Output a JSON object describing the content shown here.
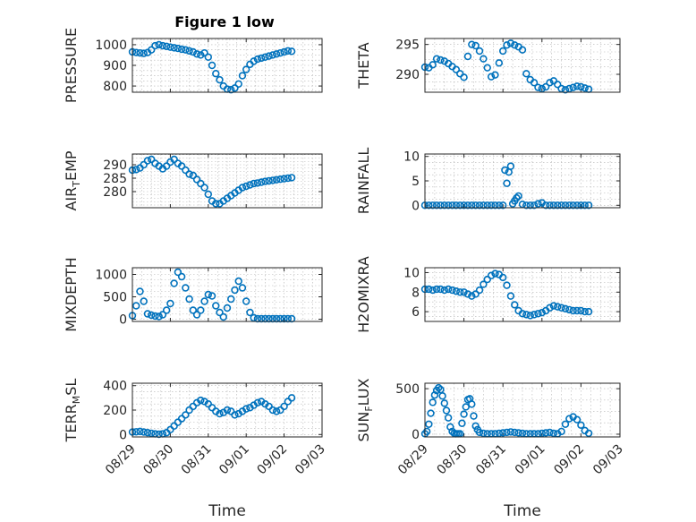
{
  "figure": {
    "title": "Figure 1 low",
    "marker_color": "#0072BD"
  },
  "chart_data": [
    {
      "type": "scatter",
      "ylabel": "PRESSURE",
      "title": "Figure 1 low",
      "xlabel": "",
      "xlim": [
        0,
        5
      ],
      "ylim": [
        770,
        1030
      ],
      "yticks": [
        800,
        900,
        1000
      ],
      "yticklabels": [
        "800",
        "900",
        "1000"
      ],
      "xticks": [
        0,
        1,
        2,
        3,
        4,
        5
      ],
      "xticklabels": [
        "",
        "",
        "",
        "",
        "",
        ""
      ],
      "x": [
        0.0,
        0.1,
        0.2,
        0.3,
        0.4,
        0.5,
        0.6,
        0.7,
        0.8,
        0.9,
        1.0,
        1.1,
        1.2,
        1.3,
        1.4,
        1.5,
        1.6,
        1.7,
        1.8,
        1.9,
        2.0,
        2.1,
        2.2,
        2.3,
        2.4,
        2.5,
        2.6,
        2.7,
        2.8,
        2.9,
        3.0,
        3.1,
        3.2,
        3.3,
        3.4,
        3.5,
        3.6,
        3.7,
        3.8,
        3.9,
        4.0,
        4.1,
        4.2
      ],
      "y": [
        965,
        962,
        960,
        958,
        962,
        975,
        995,
        1000,
        995,
        992,
        988,
        985,
        982,
        978,
        975,
        970,
        965,
        955,
        950,
        960,
        940,
        900,
        860,
        830,
        800,
        785,
        782,
        790,
        810,
        850,
        880,
        905,
        920,
        930,
        935,
        940,
        945,
        950,
        955,
        960,
        965,
        970,
        968
      ]
    },
    {
      "type": "scatter",
      "ylabel": "THETA",
      "xlabel": "",
      "xlim": [
        0,
        5
      ],
      "ylim": [
        287,
        296
      ],
      "yticks": [
        290,
        295
      ],
      "yticklabels": [
        "290",
        "295"
      ],
      "xticks": [
        0,
        1,
        2,
        3,
        4,
        5
      ],
      "xticklabels": [
        "",
        "",
        "",
        "",
        "",
        ""
      ],
      "x": [
        0.0,
        0.1,
        0.2,
        0.3,
        0.4,
        0.5,
        0.6,
        0.7,
        0.8,
        0.9,
        1.0,
        1.1,
        1.2,
        1.3,
        1.4,
        1.5,
        1.6,
        1.7,
        1.8,
        1.9,
        2.0,
        2.1,
        2.2,
        2.3,
        2.4,
        2.5,
        2.6,
        2.7,
        2.8,
        2.9,
        3.0,
        3.1,
        3.2,
        3.3,
        3.4,
        3.5,
        3.6,
        3.7,
        3.8,
        3.9,
        4.0,
        4.1,
        4.2
      ],
      "y": [
        291.2,
        291.1,
        291.6,
        292.6,
        292.4,
        292.2,
        291.8,
        291.3,
        290.8,
        290.1,
        289.5,
        293.0,
        295.0,
        294.8,
        293.9,
        292.6,
        291.1,
        289.6,
        289.9,
        291.9,
        293.9,
        294.9,
        295.2,
        294.9,
        294.6,
        294.1,
        290.1,
        289.1,
        288.6,
        287.8,
        287.6,
        287.9,
        288.6,
        288.9,
        288.3,
        287.6,
        287.4,
        287.6,
        287.8,
        288.0,
        287.9,
        287.7,
        287.5
      ]
    },
    {
      "type": "scatter",
      "ylabel": "AIR_T_EMP",
      "xlabel": "",
      "xlim": [
        0,
        5
      ],
      "ylim": [
        274,
        294
      ],
      "yticks": [
        280,
        285,
        290
      ],
      "yticklabels": [
        "280",
        "285",
        "290"
      ],
      "xticks": [
        0,
        1,
        2,
        3,
        4,
        5
      ],
      "xticklabels": [
        "",
        "",
        "",
        "",
        "",
        ""
      ],
      "x": [
        0.0,
        0.1,
        0.2,
        0.3,
        0.4,
        0.5,
        0.6,
        0.7,
        0.8,
        0.9,
        1.0,
        1.1,
        1.2,
        1.3,
        1.4,
        1.5,
        1.6,
        1.7,
        1.8,
        1.9,
        2.0,
        2.1,
        2.2,
        2.3,
        2.4,
        2.5,
        2.6,
        2.7,
        2.8,
        2.9,
        3.0,
        3.1,
        3.2,
        3.3,
        3.4,
        3.5,
        3.6,
        3.7,
        3.8,
        3.9,
        4.0,
        4.1,
        4.2
      ],
      "y": [
        288.0,
        288.2,
        288.8,
        290.0,
        291.5,
        292.0,
        290.5,
        289.5,
        288.5,
        289.5,
        291.0,
        292.0,
        290.5,
        289.5,
        288.0,
        286.5,
        286.0,
        284.5,
        283.0,
        281.5,
        279.0,
        276.5,
        275.5,
        275.5,
        276.5,
        277.5,
        278.5,
        279.5,
        280.5,
        281.5,
        282.0,
        282.5,
        283.0,
        283.2,
        283.5,
        283.8,
        284.0,
        284.2,
        284.4,
        284.6,
        284.8,
        285.0,
        285.2
      ]
    },
    {
      "type": "scatter",
      "ylabel": "RAINFALL",
      "xlabel": "",
      "xlim": [
        0,
        5
      ],
      "ylim": [
        -0.5,
        10.5
      ],
      "yticks": [
        0,
        5,
        10
      ],
      "yticklabels": [
        "0",
        "5",
        "10"
      ],
      "xticks": [
        0,
        1,
        2,
        3,
        4,
        5
      ],
      "xticklabels": [
        "",
        "",
        "",
        "",
        "",
        ""
      ],
      "x": [
        0.0,
        0.1,
        0.2,
        0.3,
        0.4,
        0.5,
        0.6,
        0.7,
        0.8,
        0.9,
        1.0,
        1.1,
        1.2,
        1.3,
        1.4,
        1.5,
        1.6,
        1.7,
        1.8,
        1.9,
        2.0,
        2.05,
        2.1,
        2.15,
        2.2,
        2.25,
        2.3,
        2.35,
        2.4,
        2.5,
        2.6,
        2.7,
        2.8,
        2.9,
        3.0,
        3.1,
        3.2,
        3.3,
        3.4,
        3.5,
        3.6,
        3.7,
        3.8,
        3.9,
        4.0,
        4.1,
        4.2
      ],
      "y": [
        0,
        0,
        0,
        0,
        0,
        0,
        0,
        0,
        0,
        0,
        0,
        0,
        0,
        0,
        0,
        0,
        0,
        0,
        0,
        0,
        0,
        7.2,
        4.5,
        6.8,
        8.0,
        0.3,
        0.9,
        1.5,
        1.9,
        0.2,
        0,
        0,
        0,
        0.3,
        0.5,
        0,
        0,
        0,
        0,
        0,
        0,
        0,
        0,
        0,
        0,
        0,
        0
      ]
    },
    {
      "type": "scatter",
      "ylabel": "MIXDEPTH",
      "xlabel": "",
      "xlim": [
        0,
        5
      ],
      "ylim": [
        -50,
        1150
      ],
      "yticks": [
        0,
        500,
        1000
      ],
      "yticklabels": [
        "0",
        "500",
        "1000"
      ],
      "xticks": [
        0,
        1,
        2,
        3,
        4,
        5
      ],
      "xticklabels": [
        "",
        "",
        "",
        "",
        "",
        ""
      ],
      "x": [
        0.0,
        0.1,
        0.2,
        0.3,
        0.4,
        0.5,
        0.6,
        0.7,
        0.8,
        0.9,
        1.0,
        1.1,
        1.2,
        1.3,
        1.4,
        1.5,
        1.6,
        1.7,
        1.8,
        1.9,
        2.0,
        2.1,
        2.2,
        2.3,
        2.4,
        2.5,
        2.6,
        2.7,
        2.8,
        2.9,
        3.0,
        3.1,
        3.2,
        3.3,
        3.4,
        3.5,
        3.6,
        3.7,
        3.8,
        3.9,
        4.0,
        4.1,
        4.2
      ],
      "y": [
        80,
        300,
        620,
        400,
        120,
        90,
        70,
        60,
        100,
        200,
        350,
        800,
        1050,
        950,
        700,
        450,
        200,
        100,
        200,
        400,
        550,
        520,
        300,
        150,
        50,
        250,
        450,
        650,
        850,
        700,
        400,
        150,
        30,
        10,
        10,
        10,
        10,
        10,
        10,
        10,
        10,
        10,
        10
      ]
    },
    {
      "type": "scatter",
      "ylabel": "H2OMIXRA",
      "xlabel": "",
      "xlim": [
        0,
        5
      ],
      "ylim": [
        5,
        10.5
      ],
      "yticks": [
        6,
        8,
        10
      ],
      "yticklabels": [
        "6",
        "8",
        "10"
      ],
      "xticks": [
        0,
        1,
        2,
        3,
        4,
        5
      ],
      "xticklabels": [
        "",
        "",
        "",
        "",
        "",
        ""
      ],
      "x": [
        0.0,
        0.1,
        0.2,
        0.3,
        0.4,
        0.5,
        0.6,
        0.7,
        0.8,
        0.9,
        1.0,
        1.1,
        1.2,
        1.3,
        1.4,
        1.5,
        1.6,
        1.7,
        1.8,
        1.9,
        2.0,
        2.1,
        2.2,
        2.3,
        2.4,
        2.5,
        2.6,
        2.7,
        2.8,
        2.9,
        3.0,
        3.1,
        3.2,
        3.3,
        3.4,
        3.5,
        3.6,
        3.7,
        3.8,
        3.9,
        4.0,
        4.1,
        4.2
      ],
      "y": [
        8.3,
        8.3,
        8.2,
        8.3,
        8.3,
        8.2,
        8.3,
        8.2,
        8.1,
        8.0,
        8.0,
        7.8,
        7.6,
        7.8,
        8.2,
        8.8,
        9.3,
        9.7,
        9.9,
        9.8,
        9.5,
        8.7,
        7.6,
        6.7,
        6.1,
        5.8,
        5.7,
        5.6,
        5.7,
        5.8,
        5.9,
        6.1,
        6.4,
        6.6,
        6.5,
        6.4,
        6.3,
        6.2,
        6.1,
        6.1,
        6.1,
        6.0,
        6.0
      ]
    },
    {
      "type": "scatter",
      "ylabel": "TERR_M_SL",
      "xlabel": "Time",
      "xlim": [
        0,
        5
      ],
      "ylim": [
        -20,
        420
      ],
      "yticks": [
        0,
        200,
        400
      ],
      "yticklabels": [
        "0",
        "200",
        "400"
      ],
      "xticks": [
        0,
        1,
        2,
        3,
        4,
        5
      ],
      "xticklabels": [
        "08/29",
        "08/30",
        "08/31",
        "09/01",
        "09/02",
        "09/03"
      ],
      "x": [
        0.0,
        0.1,
        0.2,
        0.3,
        0.4,
        0.5,
        0.6,
        0.7,
        0.8,
        0.9,
        1.0,
        1.1,
        1.2,
        1.3,
        1.4,
        1.5,
        1.6,
        1.7,
        1.8,
        1.9,
        2.0,
        2.1,
        2.2,
        2.3,
        2.4,
        2.5,
        2.6,
        2.7,
        2.8,
        2.9,
        3.0,
        3.1,
        3.2,
        3.3,
        3.4,
        3.5,
        3.6,
        3.7,
        3.8,
        3.9,
        4.0,
        4.1,
        4.2
      ],
      "y": [
        20,
        22,
        25,
        20,
        15,
        10,
        5,
        2,
        5,
        15,
        40,
        70,
        100,
        130,
        160,
        200,
        230,
        260,
        280,
        270,
        250,
        220,
        190,
        170,
        180,
        200,
        190,
        160,
        170,
        190,
        210,
        220,
        240,
        260,
        270,
        250,
        230,
        200,
        190,
        200,
        230,
        270,
        300
      ]
    },
    {
      "type": "scatter",
      "ylabel": "SUN_F_LUX",
      "xlabel": "Time",
      "xlim": [
        0,
        5
      ],
      "ylim": [
        -30,
        560
      ],
      "yticks": [
        0,
        500
      ],
      "yticklabels": [
        "0",
        "500"
      ],
      "xticks": [
        0,
        1,
        2,
        3,
        4,
        5
      ],
      "xticklabels": [
        "08/29",
        "08/30",
        "08/31",
        "09/01",
        "09/02",
        "09/03"
      ],
      "x": [
        0.0,
        0.05,
        0.1,
        0.15,
        0.2,
        0.25,
        0.3,
        0.35,
        0.4,
        0.45,
        0.5,
        0.55,
        0.6,
        0.65,
        0.7,
        0.75,
        0.8,
        0.85,
        0.9,
        0.95,
        1.0,
        1.05,
        1.1,
        1.15,
        1.2,
        1.25,
        1.3,
        1.35,
        1.4,
        1.5,
        1.6,
        1.7,
        1.8,
        1.9,
        2.0,
        2.1,
        2.2,
        2.3,
        2.4,
        2.5,
        2.6,
        2.7,
        2.8,
        2.9,
        3.0,
        3.1,
        3.2,
        3.3,
        3.4,
        3.5,
        3.6,
        3.7,
        3.8,
        3.9,
        4.0,
        4.1,
        4.2
      ],
      "y": [
        5,
        30,
        110,
        230,
        350,
        430,
        480,
        510,
        490,
        420,
        340,
        260,
        180,
        80,
        30,
        10,
        5,
        5,
        5,
        120,
        220,
        300,
        380,
        390,
        330,
        200,
        90,
        50,
        20,
        10,
        5,
        5,
        5,
        10,
        15,
        20,
        25,
        20,
        15,
        10,
        5,
        5,
        5,
        5,
        10,
        15,
        20,
        10,
        5,
        30,
        110,
        170,
        190,
        160,
        100,
        40,
        10
      ]
    }
  ]
}
